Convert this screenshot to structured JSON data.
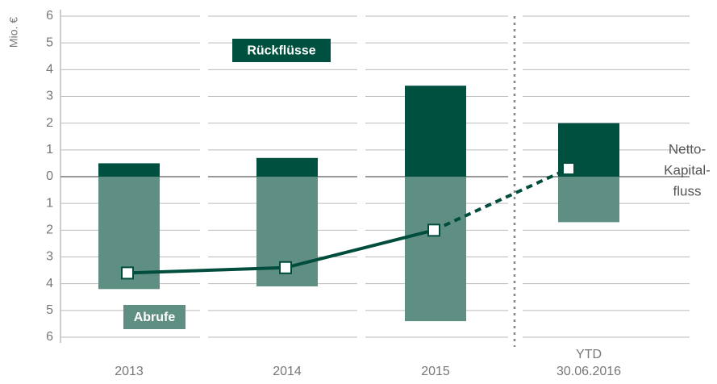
{
  "chart_data": {
    "type": "bar",
    "y_label": "Mio. €",
    "categories": [
      "2013",
      "2014",
      "2015",
      "YTD 30.06.2016"
    ],
    "series": [
      {
        "name": "Rückflüsse",
        "color": "#00503f",
        "values": [
          0.5,
          0.7,
          3.4,
          2.0
        ]
      },
      {
        "name": "Abrufe",
        "color": "#5f8f82",
        "values": [
          -4.2,
          -4.1,
          -5.4,
          -1.7
        ]
      }
    ],
    "line": {
      "name": [
        "Netto-",
        "Kapital-",
        "fluss"
      ],
      "color": "#004d3d",
      "values": [
        -3.6,
        -3.4,
        -2.0,
        0.3
      ],
      "dashed_after": "2015"
    },
    "ylim": [
      -6,
      6
    ],
    "yticks": [
      {
        "value": -6,
        "label": "6"
      },
      {
        "value": -5,
        "label": "5"
      },
      {
        "value": -4,
        "label": "4"
      },
      {
        "value": -3,
        "label": "3"
      },
      {
        "value": -2,
        "label": "2"
      },
      {
        "value": -1,
        "label": "1"
      },
      0,
      1,
      2,
      3,
      4,
      5,
      6
    ],
    "grid": true
  }
}
